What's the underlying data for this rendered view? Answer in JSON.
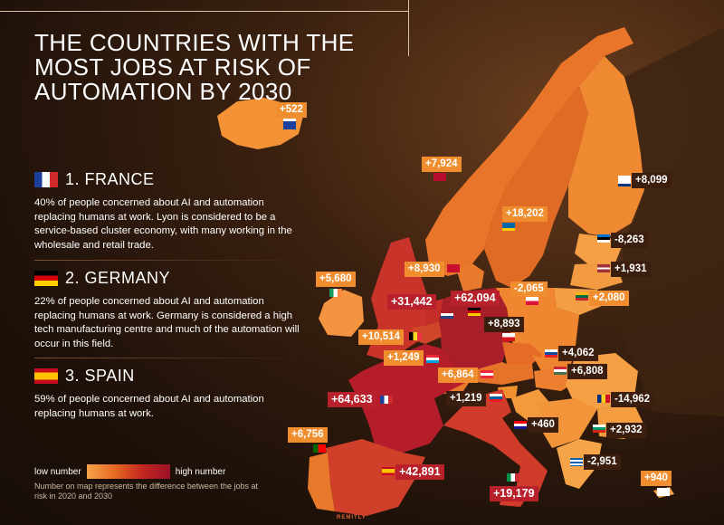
{
  "title": "THE COUNTRIES WITH THE MOST JOBS AT RISK OF AUTOMATION BY 2030",
  "sections": [
    {
      "heading": "1. FRANCE",
      "flag": "france-flag",
      "text": "40% of people concerned about AI and automation replacing humans at work. Lyon is considered to be a service-based cluster economy, with many working in the wholesale and retail trade."
    },
    {
      "heading": "2. GERMANY",
      "flag": "germany-flag",
      "text": "22% of people concerned about AI and automation replacing humans at work. Germany is considered a high tech manufacturing centre and much of the automation will occur in this field."
    },
    {
      "heading": "3. SPAIN",
      "flag": "spain-flag",
      "text": "59% of people concerned about AI and automation replacing humans at work."
    }
  ],
  "legend": {
    "low": "low number",
    "high": "high number",
    "note": "Number on map represents the difference between the jobs at risk in 2020 and 2030",
    "colors": [
      "#f7a24a",
      "#9c1228"
    ]
  },
  "brand": "REMITLY",
  "countries": {
    "iceland": "+522",
    "norway": "+7,924",
    "finland": "+8,099",
    "sweden": "+18,202",
    "estonia": "-8,263",
    "denmark": "+8,930",
    "latvia": "+1,931",
    "ireland": "+5,680",
    "lithuania": "+2,080",
    "poland": "-2,065",
    "uk": "+31,442",
    "germany": "+62,094",
    "czechia": "+8,893",
    "belgium": "+10,514",
    "slovakia": "+4,062",
    "luxembourg": "+1,249",
    "austria": "+6,864",
    "hungary": "+6,808",
    "france": "+64,633",
    "slovenia": "+1,219",
    "romania": "-14,962",
    "croatia": "+460",
    "bulgaria": "+2,932",
    "portugal": "+6,756",
    "spain": "+42,891",
    "greece": "-2,951",
    "italy": "+19,179",
    "cyprus": "+940"
  }
}
